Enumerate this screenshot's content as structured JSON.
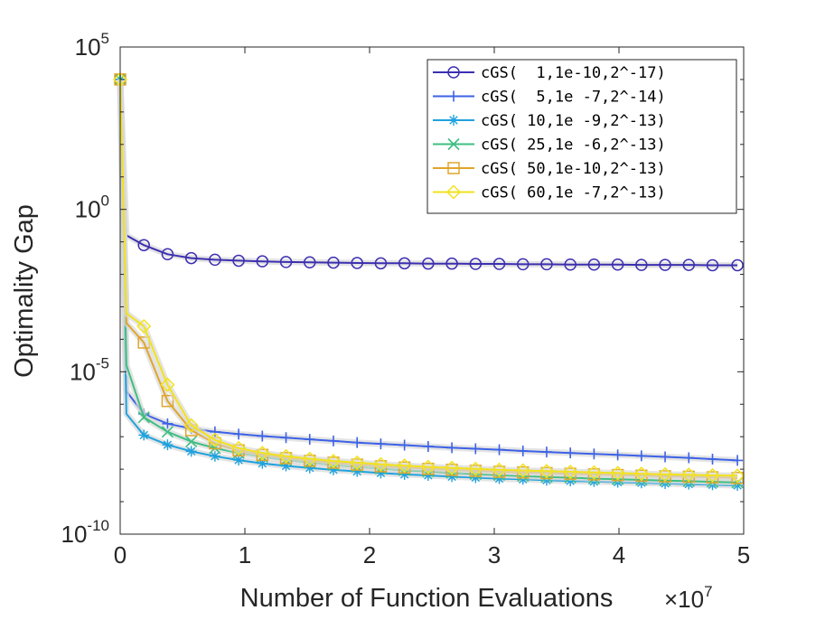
{
  "chart_data": {
    "type": "line",
    "title": "",
    "xlabel": "Number of Function Evaluations",
    "x_multiplier_label": "×10",
    "x_multiplier_exp": "7",
    "ylabel": "Optimality Gap",
    "x_scale": 10000000,
    "xlim": [
      0,
      5
    ],
    "ylim_log10": [
      -10,
      5
    ],
    "y_scale": "log",
    "x_ticks": [
      {
        "value": 0,
        "label": "0"
      },
      {
        "value": 1,
        "label": "1"
      },
      {
        "value": 2,
        "label": "2"
      },
      {
        "value": 3,
        "label": "3"
      },
      {
        "value": 4,
        "label": "4"
      },
      {
        "value": 5,
        "label": "5"
      }
    ],
    "y_ticks": [
      {
        "value": 5,
        "base": "10",
        "exp": "5"
      },
      {
        "value": 0,
        "base": "10",
        "exp": "0"
      },
      {
        "value": -5,
        "base": "10",
        "exp": "-5"
      },
      {
        "value": -10,
        "base": "10",
        "exp": "-10"
      }
    ],
    "grid": false,
    "legend_position": "top-right",
    "series": [
      {
        "name": "cGS(  1,1e-10,2^-17)",
        "color": "#3c2fb0",
        "marker": "circle",
        "x": [
          0,
          0.05,
          0.19,
          0.38,
          0.57,
          0.76,
          0.95,
          1.14,
          1.33,
          1.52,
          1.71,
          1.9,
          2.09,
          2.28,
          2.47,
          2.66,
          2.85,
          3.04,
          3.23,
          3.42,
          3.61,
          3.8,
          3.99,
          4.18,
          4.37,
          4.56,
          4.75,
          4.95
        ],
        "log10_y": [
          4,
          -0.8,
          -1.1,
          -1.38,
          -1.5,
          -1.55,
          -1.58,
          -1.6,
          -1.62,
          -1.63,
          -1.64,
          -1.65,
          -1.66,
          -1.66,
          -1.67,
          -1.67,
          -1.68,
          -1.68,
          -1.69,
          -1.69,
          -1.7,
          -1.7,
          -1.7,
          -1.71,
          -1.71,
          -1.71,
          -1.72,
          -1.72
        ]
      },
      {
        "name": "cGS(  5,1e -7,2^-14)",
        "color": "#3d62e6",
        "marker": "plus",
        "x": [
          0,
          0.05,
          0.19,
          0.38,
          0.57,
          0.76,
          0.95,
          1.14,
          1.33,
          1.52,
          1.71,
          1.9,
          2.09,
          2.28,
          2.47,
          2.66,
          2.85,
          3.04,
          3.23,
          3.42,
          3.61,
          3.8,
          3.99,
          4.18,
          4.37,
          4.56,
          4.75,
          4.95
        ],
        "log10_y": [
          4,
          -5.6,
          -6.3,
          -6.6,
          -6.75,
          -6.85,
          -6.92,
          -6.98,
          -7.03,
          -7.08,
          -7.13,
          -7.18,
          -7.22,
          -7.26,
          -7.3,
          -7.34,
          -7.37,
          -7.4,
          -7.44,
          -7.47,
          -7.5,
          -7.53,
          -7.56,
          -7.59,
          -7.62,
          -7.65,
          -7.69,
          -7.73
        ]
      },
      {
        "name": "cGS( 10,1e -9,2^-13)",
        "color": "#1fa2de",
        "marker": "asterisk",
        "x": [
          0,
          0.05,
          0.19,
          0.38,
          0.57,
          0.76,
          0.95,
          1.14,
          1.33,
          1.52,
          1.71,
          1.9,
          2.09,
          2.28,
          2.47,
          2.66,
          2.85,
          3.04,
          3.23,
          3.42,
          3.61,
          3.8,
          3.99,
          4.18,
          4.37,
          4.56,
          4.75,
          4.95
        ],
        "log10_y": [
          4,
          -6.3,
          -6.95,
          -7.25,
          -7.45,
          -7.6,
          -7.72,
          -7.82,
          -7.9,
          -7.96,
          -8.02,
          -8.07,
          -8.12,
          -8.16,
          -8.19,
          -8.23,
          -8.26,
          -8.29,
          -8.31,
          -8.34,
          -8.36,
          -8.38,
          -8.4,
          -8.42,
          -8.44,
          -8.46,
          -8.48,
          -8.5
        ]
      },
      {
        "name": "cGS( 25,1e -6,2^-13)",
        "color": "#3ebf82",
        "marker": "cross",
        "x": [
          0,
          0.05,
          0.19,
          0.38,
          0.57,
          0.76,
          0.95,
          1.14,
          1.33,
          1.52,
          1.71,
          1.9,
          2.09,
          2.28,
          2.47,
          2.66,
          2.85,
          3.04,
          3.23,
          3.42,
          3.61,
          3.8,
          3.99,
          4.18,
          4.37,
          4.56,
          4.75,
          4.95
        ],
        "log10_y": [
          4,
          -4.8,
          -6.4,
          -6.85,
          -7.15,
          -7.35,
          -7.5,
          -7.62,
          -7.72,
          -7.8,
          -7.87,
          -7.93,
          -7.98,
          -8.03,
          -8.07,
          -8.11,
          -8.15,
          -8.18,
          -8.21,
          -8.24,
          -8.26,
          -8.29,
          -8.31,
          -8.33,
          -8.35,
          -8.37,
          -8.39,
          -8.41
        ]
      },
      {
        "name": "cGS( 50,1e-10,2^-13)",
        "color": "#e0a52c",
        "marker": "square",
        "x": [
          0,
          0.05,
          0.19,
          0.38,
          0.57,
          0.76,
          0.95,
          1.14,
          1.33,
          1.52,
          1.71,
          1.9,
          2.09,
          2.28,
          2.47,
          2.66,
          2.85,
          3.04,
          3.23,
          3.42,
          3.61,
          3.8,
          3.99,
          4.18,
          4.37,
          4.56,
          4.75,
          4.95
        ],
        "log10_y": [
          4,
          -3.5,
          -4.1,
          -5.9,
          -6.8,
          -7.2,
          -7.42,
          -7.56,
          -7.66,
          -7.74,
          -7.8,
          -7.86,
          -7.91,
          -7.95,
          -7.99,
          -8.02,
          -8.05,
          -8.08,
          -8.1,
          -8.12,
          -8.14,
          -8.16,
          -8.18,
          -8.2,
          -8.22,
          -8.23,
          -8.25,
          -8.27
        ]
      },
      {
        "name": "cGS( 60,1e -7,2^-13)",
        "color": "#f2e21d",
        "marker": "diamond",
        "x": [
          0,
          0.05,
          0.19,
          0.38,
          0.57,
          0.76,
          0.95,
          1.14,
          1.33,
          1.52,
          1.71,
          1.9,
          2.09,
          2.28,
          2.47,
          2.66,
          2.85,
          3.04,
          3.23,
          3.42,
          3.61,
          3.8,
          3.99,
          4.18,
          4.37,
          4.56,
          4.75,
          4.95
        ],
        "log10_y": [
          4,
          -3.2,
          -3.6,
          -5.4,
          -6.65,
          -7.1,
          -7.35,
          -7.5,
          -7.6,
          -7.68,
          -7.75,
          -7.8,
          -7.85,
          -7.89,
          -7.93,
          -7.96,
          -7.99,
          -8.02,
          -8.04,
          -8.06,
          -8.08,
          -8.1,
          -8.12,
          -8.14,
          -8.16,
          -8.17,
          -8.19,
          -8.2
        ]
      }
    ]
  }
}
